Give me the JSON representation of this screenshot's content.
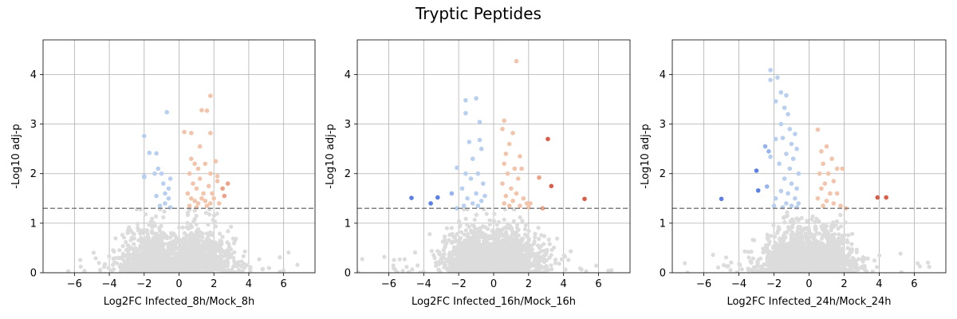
{
  "figure": {
    "title": "Tryptic Peptides"
  },
  "chart_data": [
    {
      "type": "scatter",
      "xlabel": "Log2FC Infected_8h/Mock_8h",
      "ylabel": "-Log10 adj-p",
      "xlim": [
        -7.8,
        7.8
      ],
      "ylim": [
        0,
        4.7
      ],
      "xticks": [
        -6,
        -4,
        -2,
        0,
        2,
        4,
        6
      ],
      "yticks": [
        0,
        1,
        2,
        3,
        4
      ],
      "grid": true,
      "threshold_y": 1.3,
      "colors": {
        "nonsig": "#dcdcdc",
        "down": "#b8cff0",
        "up": "#f2c4ab",
        "strong_down": "#5b7fe6",
        "strong_up": "#d75f4a",
        "threshold": "#808080"
      },
      "sig_points": [
        [
          -2.0,
          2.76
        ],
        [
          -1.7,
          2.42
        ],
        [
          -1.3,
          2.41
        ],
        [
          -0.7,
          3.24
        ],
        [
          -2.0,
          1.95
        ],
        [
          -2.0,
          1.93
        ],
        [
          -1.4,
          2.0
        ],
        [
          -1.2,
          2.1
        ],
        [
          -1.0,
          2.0
        ],
        [
          -0.9,
          1.8
        ],
        [
          -0.6,
          1.7
        ],
        [
          -0.5,
          1.9
        ],
        [
          -1.3,
          1.55
        ],
        [
          -0.8,
          1.6
        ],
        [
          -0.6,
          1.5
        ],
        [
          -1.1,
          1.35
        ],
        [
          -0.8,
          1.4
        ],
        [
          -0.5,
          1.32
        ],
        [
          0.3,
          2.84
        ],
        [
          0.7,
          2.82
        ],
        [
          1.3,
          3.28
        ],
        [
          1.6,
          3.27
        ],
        [
          1.8,
          3.57
        ],
        [
          1.8,
          2.82
        ],
        [
          1.2,
          2.55
        ],
        [
          0.7,
          2.3
        ],
        [
          0.9,
          2.2
        ],
        [
          1.1,
          2.1
        ],
        [
          1.5,
          2.2
        ],
        [
          1.8,
          2.0
        ],
        [
          2.1,
          2.25
        ],
        [
          2.2,
          1.95
        ],
        [
          2.5,
          1.7
        ],
        [
          2.8,
          1.8
        ],
        [
          2.6,
          1.55
        ],
        [
          2.2,
          1.85
        ],
        [
          0.6,
          2.0
        ],
        [
          0.8,
          1.8
        ],
        [
          1.0,
          1.7
        ],
        [
          1.2,
          1.9
        ],
        [
          1.4,
          1.6
        ],
        [
          1.7,
          1.75
        ],
        [
          1.9,
          1.6
        ],
        [
          2.0,
          1.5
        ],
        [
          0.5,
          1.6
        ],
        [
          0.7,
          1.5
        ],
        [
          0.9,
          1.45
        ],
        [
          1.1,
          1.4
        ],
        [
          1.3,
          1.5
        ],
        [
          1.5,
          1.45
        ],
        [
          1.8,
          1.4
        ],
        [
          0.6,
          1.35
        ],
        [
          1.0,
          1.32
        ],
        [
          1.6,
          1.35
        ],
        [
          2.3,
          1.4
        ]
      ]
    },
    {
      "type": "scatter",
      "xlabel": "Log2FC Infected_16h/Mock_16h",
      "ylabel": "-Log10 adj-p",
      "xlim": [
        -7.8,
        7.8
      ],
      "ylim": [
        0,
        4.7
      ],
      "xticks": [
        -6,
        -4,
        -2,
        0,
        2,
        4,
        6
      ],
      "yticks": [
        0,
        1,
        2,
        3,
        4
      ],
      "grid": true,
      "threshold_y": 1.3,
      "colors": {
        "nonsig": "#dcdcdc",
        "down": "#b8cff0",
        "up": "#f2c4ab",
        "strong_down": "#5b7fe6",
        "strong_up": "#d75f4a",
        "threshold": "#808080"
      },
      "sig_points": [
        [
          -4.7,
          1.51
        ],
        [
          -3.2,
          1.52
        ],
        [
          -3.6,
          1.4
        ],
        [
          -2.1,
          2.12
        ],
        [
          -1.6,
          3.48
        ],
        [
          -1.6,
          3.22
        ],
        [
          -1.0,
          3.52
        ],
        [
          -0.8,
          3.04
        ],
        [
          -1.4,
          2.64
        ],
        [
          -0.8,
          2.68
        ],
        [
          -0.7,
          2.5
        ],
        [
          -1.2,
          2.3
        ],
        [
          -0.9,
          2.0
        ],
        [
          -1.6,
          2.0
        ],
        [
          -1.3,
          1.9
        ],
        [
          -0.6,
          1.8
        ],
        [
          -1.8,
          1.7
        ],
        [
          -1.0,
          1.6
        ],
        [
          -0.5,
          1.55
        ],
        [
          -1.5,
          1.5
        ],
        [
          -0.7,
          1.45
        ],
        [
          -1.2,
          1.4
        ],
        [
          -0.9,
          1.35
        ],
        [
          -1.7,
          1.35
        ],
        [
          -2.4,
          1.6
        ],
        [
          -2.1,
          1.3
        ],
        [
          1.3,
          4.27
        ],
        [
          0.6,
          3.07
        ],
        [
          0.5,
          2.9
        ],
        [
          1.1,
          2.82
        ],
        [
          0.9,
          2.6
        ],
        [
          0.7,
          2.4
        ],
        [
          1.5,
          2.35
        ],
        [
          0.6,
          2.2
        ],
        [
          1.2,
          2.1
        ],
        [
          0.8,
          2.0
        ],
        [
          1.4,
          1.9
        ],
        [
          1.6,
          2.1
        ],
        [
          0.5,
          1.8
        ],
        [
          1.0,
          1.7
        ],
        [
          1.3,
          1.6
        ],
        [
          0.7,
          1.55
        ],
        [
          1.7,
          1.5
        ],
        [
          1.9,
          1.4
        ],
        [
          2.1,
          1.4
        ],
        [
          1.1,
          1.45
        ],
        [
          0.6,
          1.4
        ],
        [
          0.9,
          1.35
        ],
        [
          1.5,
          1.35
        ],
        [
          2.0,
          1.32
        ],
        [
          2.6,
          1.92
        ],
        [
          3.1,
          2.7
        ],
        [
          3.3,
          1.75
        ],
        [
          2.8,
          1.3
        ],
        [
          5.2,
          1.49
        ]
      ]
    },
    {
      "type": "scatter",
      "xlabel": "Log2FC Infected_24h/Mock_24h",
      "ylabel": "-Log10 adj-p",
      "xlim": [
        -7.8,
        7.8
      ],
      "ylim": [
        0,
        4.7
      ],
      "xticks": [
        -6,
        -4,
        -2,
        0,
        2,
        4,
        6
      ],
      "yticks": [
        0,
        1,
        2,
        3,
        4
      ],
      "grid": true,
      "threshold_y": 1.3,
      "colors": {
        "nonsig": "#dcdcdc",
        "down": "#b8cff0",
        "up": "#f2c4ab",
        "strong_down": "#5b7fe6",
        "strong_up": "#d75f4a",
        "threshold": "#808080"
      },
      "sig_points": [
        [
          -5.0,
          1.49
        ],
        [
          -3.0,
          2.06
        ],
        [
          -2.9,
          1.66
        ],
        [
          -2.5,
          2.55
        ],
        [
          -2.4,
          1.74
        ],
        [
          -2.3,
          2.45
        ],
        [
          -2.2,
          2.34
        ],
        [
          -2.2,
          3.89
        ],
        [
          -2.2,
          4.09
        ],
        [
          -1.8,
          3.94
        ],
        [
          -1.6,
          3.64
        ],
        [
          -1.9,
          3.46
        ],
        [
          -1.3,
          3.58
        ],
        [
          -1.4,
          3.33
        ],
        [
          -1.2,
          3.2
        ],
        [
          -1.6,
          3.0
        ],
        [
          -1.1,
          2.9
        ],
        [
          -0.8,
          2.8
        ],
        [
          -1.9,
          2.7
        ],
        [
          -1.5,
          2.72
        ],
        [
          -1.0,
          2.6
        ],
        [
          -0.7,
          2.5
        ],
        [
          -1.3,
          2.4
        ],
        [
          -0.9,
          2.3
        ],
        [
          -1.7,
          2.2
        ],
        [
          -1.1,
          2.1
        ],
        [
          -0.6,
          2.0
        ],
        [
          -1.4,
          1.9
        ],
        [
          -1.0,
          1.8
        ],
        [
          -0.7,
          1.7
        ],
        [
          -1.6,
          1.65
        ],
        [
          -1.2,
          1.6
        ],
        [
          -0.8,
          1.5
        ],
        [
          -1.9,
          1.5
        ],
        [
          -0.6,
          1.4
        ],
        [
          -1.3,
          1.4
        ],
        [
          -1.0,
          1.35
        ],
        [
          -0.7,
          1.32
        ],
        [
          -2.0,
          1.35
        ],
        [
          -1.5,
          1.32
        ],
        [
          0.5,
          2.89
        ],
        [
          0.7,
          2.45
        ],
        [
          1.0,
          2.55
        ],
        [
          0.8,
          2.2
        ],
        [
          1.3,
          2.3
        ],
        [
          1.6,
          2.1
        ],
        [
          1.9,
          2.1
        ],
        [
          0.6,
          2.0
        ],
        [
          1.1,
          2.0
        ],
        [
          0.9,
          1.8
        ],
        [
          1.4,
          1.85
        ],
        [
          0.7,
          1.7
        ],
        [
          1.2,
          1.6
        ],
        [
          1.6,
          1.6
        ],
        [
          0.5,
          1.5
        ],
        [
          1.0,
          1.45
        ],
        [
          1.4,
          1.4
        ],
        [
          0.8,
          1.35
        ],
        [
          1.8,
          1.35
        ],
        [
          2.1,
          1.3
        ],
        [
          3.9,
          1.52
        ],
        [
          4.4,
          1.52
        ]
      ]
    }
  ]
}
